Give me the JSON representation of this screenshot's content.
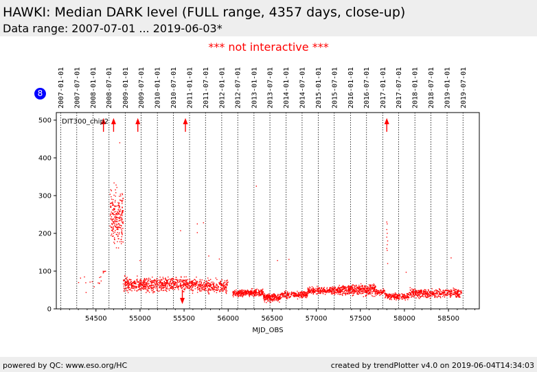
{
  "header": {
    "title": "HAWKI: Median DARK level (FULL range, 4357 days, close-up)",
    "subtitle": "Data range: 2007-07-01 ... 2019-06-03*"
  },
  "notice": "*** not interactive ***",
  "badge": "8",
  "footer": {
    "left": "powered by QC: www.eso.org/HC",
    "right": "created by trendPlotter v4.0 on 2019-06-04T14:34:03"
  },
  "colors": {
    "data": "#ff0000",
    "badge": "#0000ff",
    "notice": "#ff0000"
  },
  "chart_data": {
    "type": "scatter",
    "xlabel": "MJD_OBS",
    "xlim": [
      54050,
      58850
    ],
    "ylim": [
      0,
      520
    ],
    "x_ticks": [
      54500,
      55000,
      55500,
      56000,
      56500,
      57000,
      57500,
      58000,
      58500
    ],
    "y_ticks": [
      0,
      100,
      200,
      300,
      400,
      500
    ],
    "date_markers": [
      {
        "label": "2007-01-01",
        "mjd": 54101
      },
      {
        "label": "2007-07-01",
        "mjd": 54282
      },
      {
        "label": "2008-01-01",
        "mjd": 54466
      },
      {
        "label": "2008-07-01",
        "mjd": 54648
      },
      {
        "label": "2009-01-01",
        "mjd": 54832
      },
      {
        "label": "2009-07-01",
        "mjd": 55013
      },
      {
        "label": "2010-01-01",
        "mjd": 55197
      },
      {
        "label": "2010-07-01",
        "mjd": 55378
      },
      {
        "label": "2011-01-01",
        "mjd": 55562
      },
      {
        "label": "2011-07-01",
        "mjd": 55743
      },
      {
        "label": "2012-01-01",
        "mjd": 55927
      },
      {
        "label": "2012-07-01",
        "mjd": 56109
      },
      {
        "label": "2013-01-01",
        "mjd": 56293
      },
      {
        "label": "2013-07-01",
        "mjd": 56474
      },
      {
        "label": "2014-01-01",
        "mjd": 56658
      },
      {
        "label": "2014-07-01",
        "mjd": 56839
      },
      {
        "label": "2015-01-01",
        "mjd": 57023
      },
      {
        "label": "2015-07-01",
        "mjd": 57204
      },
      {
        "label": "2016-01-01",
        "mjd": 57388
      },
      {
        "label": "2016-07-01",
        "mjd": 57570
      },
      {
        "label": "2017-01-01",
        "mjd": 57754
      },
      {
        "label": "2017-07-01",
        "mjd": 57935
      },
      {
        "label": "2018-01-01",
        "mjd": 58119
      },
      {
        "label": "2018-07-01",
        "mjd": 58300
      },
      {
        "label": "2019-01-01",
        "mjd": 58484
      },
      {
        "label": "2019-07-01",
        "mjd": 58665
      }
    ],
    "series": [
      {
        "name": "DIT300_chip2",
        "segments": [
          {
            "x": [
              54300,
              54560
            ],
            "y": [
              30,
              115
            ],
            "n": 14
          },
          {
            "x": [
              54580,
              54610
            ],
            "y": [
              90,
              110
            ],
            "n": 6
          },
          {
            "x": [
              54660,
              54810
            ],
            "y": [
              140,
              350
            ],
            "n": 240
          },
          {
            "x": [
              54810,
              55650
            ],
            "y": [
              38,
              90
            ],
            "n": 700
          },
          {
            "x": [
              55650,
              56000
            ],
            "y": [
              35,
              85
            ],
            "n": 260
          },
          {
            "x": [
              56050,
              56400
            ],
            "y": [
              30,
              55
            ],
            "n": 320
          },
          {
            "x": [
              56400,
              56600
            ],
            "y": [
              15,
              45
            ],
            "n": 220
          },
          {
            "x": [
              56600,
              56900
            ],
            "y": [
              25,
              50
            ],
            "n": 220
          },
          {
            "x": [
              56900,
              57250
            ],
            "y": [
              35,
              62
            ],
            "n": 260
          },
          {
            "x": [
              57250,
              57680
            ],
            "y": [
              30,
              70
            ],
            "n": 420
          },
          {
            "x": [
              57680,
              57780
            ],
            "y": [
              35,
              55
            ],
            "n": 60
          },
          {
            "x": [
              57780,
              57830
            ],
            "y": [
              25,
              45
            ],
            "n": 40
          },
          {
            "x": [
              57830,
              58050
            ],
            "y": [
              20,
              45
            ],
            "n": 150
          },
          {
            "x": [
              58050,
              58650
            ],
            "y": [
              25,
              58
            ],
            "n": 420
          }
        ],
        "outliers": [
          {
            "x": 54770,
            "y": 440
          },
          {
            "x": 55460,
            "y": 207
          },
          {
            "x": 55650,
            "y": 225
          },
          {
            "x": 55720,
            "y": 228
          },
          {
            "x": 55650,
            "y": 202
          },
          {
            "x": 55780,
            "y": 140
          },
          {
            "x": 55900,
            "y": 132
          },
          {
            "x": 56320,
            "y": 325
          },
          {
            "x": 56560,
            "y": 128
          },
          {
            "x": 56690,
            "y": 131
          },
          {
            "x": 58020,
            "y": 97
          },
          {
            "x": 58530,
            "y": 135
          },
          {
            "x": 55000,
            "y": 128
          },
          {
            "x": 57800,
            "y": 230
          },
          {
            "x": 57805,
            "y": 225
          },
          {
            "x": 57800,
            "y": 210
          },
          {
            "x": 57805,
            "y": 200
          },
          {
            "x": 57800,
            "y": 190
          },
          {
            "x": 57805,
            "y": 170
          },
          {
            "x": 57800,
            "y": 160
          },
          {
            "x": 57805,
            "y": 155
          },
          {
            "x": 57810,
            "y": 180
          },
          {
            "x": 57810,
            "y": 120
          }
        ]
      }
    ],
    "arrows_up": [
      54585,
      54700,
      54975,
      55515,
      57800
    ],
    "arrows_down": [
      55480
    ],
    "annotation": "DIT300_chip2"
  }
}
